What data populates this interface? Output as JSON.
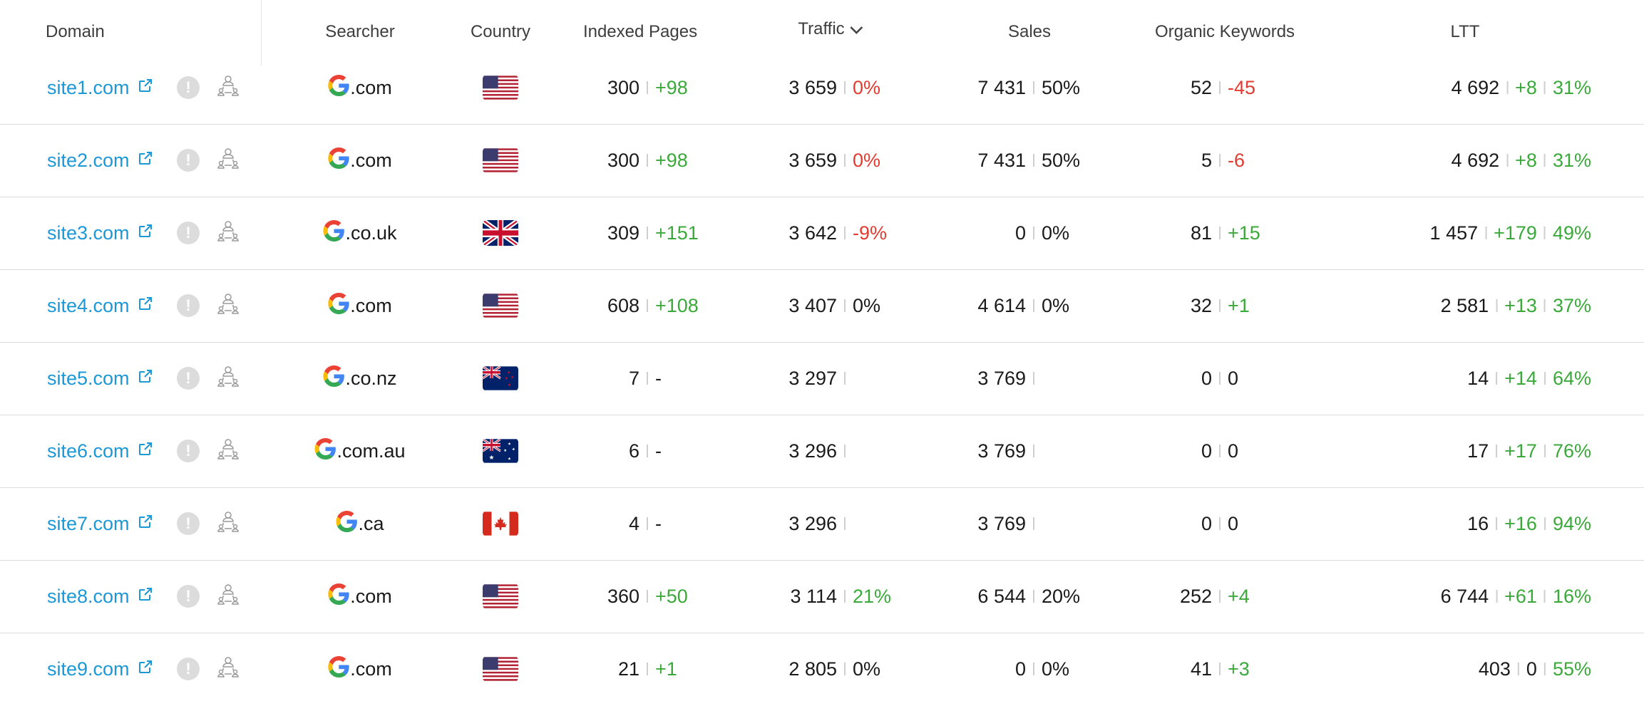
{
  "headers": {
    "domain": "Domain",
    "searcher": "Searcher",
    "country": "Country",
    "indexed_pages": "Indexed Pages",
    "traffic": "Traffic",
    "sales": "Sales",
    "organic_keywords": "Organic Keywords",
    "ltt": "LTT"
  },
  "icons": {
    "external_link": "external-link-icon",
    "warning": "exclamation-icon",
    "user_network": "user-network-icon",
    "search_engine": "google-logo-icon",
    "sort": "chevron-down-icon"
  },
  "colors": {
    "link": "#1c98d6",
    "positive": "#3aa93a",
    "negative": "#e23b2f"
  },
  "rows": [
    {
      "domain": "site1.com",
      "searcher": ".com",
      "country": "us",
      "indexed": "300",
      "indexed_delta": "+98",
      "indexed_delta_color": "green",
      "traffic": "3 659",
      "traffic_delta": "0%",
      "traffic_delta_color": "red",
      "sales": "7 431",
      "sales_delta": "50%",
      "sales_delta_color": "",
      "keywords": "52",
      "keywords_delta": "-45",
      "keywords_delta_color": "red",
      "ltt": "4 692",
      "ltt_delta": "+8",
      "ltt_delta_color": "green",
      "ltt_pct": "31%"
    },
    {
      "domain": "site2.com",
      "searcher": ".com",
      "country": "us",
      "indexed": "300",
      "indexed_delta": "+98",
      "indexed_delta_color": "green",
      "traffic": "3 659",
      "traffic_delta": "0%",
      "traffic_delta_color": "red",
      "sales": "7 431",
      "sales_delta": "50%",
      "sales_delta_color": "",
      "keywords": "5",
      "keywords_delta": "-6",
      "keywords_delta_color": "red",
      "ltt": "4 692",
      "ltt_delta": "+8",
      "ltt_delta_color": "green",
      "ltt_pct": "31%"
    },
    {
      "domain": "site3.com",
      "searcher": ".co.uk",
      "country": "uk",
      "indexed": "309",
      "indexed_delta": "+151",
      "indexed_delta_color": "green",
      "traffic": "3 642",
      "traffic_delta": "-9%",
      "traffic_delta_color": "red",
      "sales": "0",
      "sales_delta": "0%",
      "sales_delta_color": "",
      "keywords": "81",
      "keywords_delta": "+15",
      "keywords_delta_color": "green",
      "ltt": "1 457",
      "ltt_delta": "+179",
      "ltt_delta_color": "green",
      "ltt_pct": "49%"
    },
    {
      "domain": "site4.com",
      "searcher": ".com",
      "country": "us",
      "indexed": "608",
      "indexed_delta": "+108",
      "indexed_delta_color": "green",
      "traffic": "3 407",
      "traffic_delta": "0%",
      "traffic_delta_color": "",
      "sales": "4 614",
      "sales_delta": "0%",
      "sales_delta_color": "",
      "keywords": "32",
      "keywords_delta": "+1",
      "keywords_delta_color": "green",
      "ltt": "2 581",
      "ltt_delta": "+13",
      "ltt_delta_color": "green",
      "ltt_pct": "37%"
    },
    {
      "domain": "site5.com",
      "searcher": ".co.nz",
      "country": "nz",
      "indexed": "7",
      "indexed_delta": "-",
      "indexed_delta_color": "",
      "traffic": "3 297",
      "traffic_delta": "",
      "traffic_delta_color": "",
      "sales": "3 769",
      "sales_delta": "",
      "sales_delta_color": "",
      "keywords": "0",
      "keywords_delta": "0",
      "keywords_delta_color": "",
      "ltt": "14",
      "ltt_delta": "+14",
      "ltt_delta_color": "green",
      "ltt_pct": "64%"
    },
    {
      "domain": "site6.com",
      "searcher": ".com.au",
      "country": "au",
      "indexed": "6",
      "indexed_delta": "-",
      "indexed_delta_color": "",
      "traffic": "3 296",
      "traffic_delta": "",
      "traffic_delta_color": "",
      "sales": "3 769",
      "sales_delta": "",
      "sales_delta_color": "",
      "keywords": "0",
      "keywords_delta": "0",
      "keywords_delta_color": "",
      "ltt": "17",
      "ltt_delta": "+17",
      "ltt_delta_color": "green",
      "ltt_pct": "76%"
    },
    {
      "domain": "site7.com",
      "searcher": ".ca",
      "country": "ca",
      "indexed": "4",
      "indexed_delta": "-",
      "indexed_delta_color": "",
      "traffic": "3 296",
      "traffic_delta": "",
      "traffic_delta_color": "",
      "sales": "3 769",
      "sales_delta": "",
      "sales_delta_color": "",
      "keywords": "0",
      "keywords_delta": "0",
      "keywords_delta_color": "",
      "ltt": "16",
      "ltt_delta": "+16",
      "ltt_delta_color": "green",
      "ltt_pct": "94%"
    },
    {
      "domain": "site8.com",
      "searcher": ".com",
      "country": "us",
      "indexed": "360",
      "indexed_delta": "+50",
      "indexed_delta_color": "green",
      "traffic": "3 114",
      "traffic_delta": "21%",
      "traffic_delta_color": "green",
      "sales": "6 544",
      "sales_delta": "20%",
      "sales_delta_color": "",
      "keywords": "252",
      "keywords_delta": "+4",
      "keywords_delta_color": "green",
      "ltt": "6 744",
      "ltt_delta": "+61",
      "ltt_delta_color": "green",
      "ltt_pct": "16%"
    },
    {
      "domain": "site9.com",
      "searcher": ".com",
      "country": "us",
      "indexed": "21",
      "indexed_delta": "+1",
      "indexed_delta_color": "green",
      "traffic": "2 805",
      "traffic_delta": "0%",
      "traffic_delta_color": "",
      "sales": "0",
      "sales_delta": "0%",
      "sales_delta_color": "",
      "keywords": "41",
      "keywords_delta": "+3",
      "keywords_delta_color": "green",
      "ltt": "403",
      "ltt_delta": "0",
      "ltt_delta_color": "",
      "ltt_pct": "55%"
    }
  ]
}
